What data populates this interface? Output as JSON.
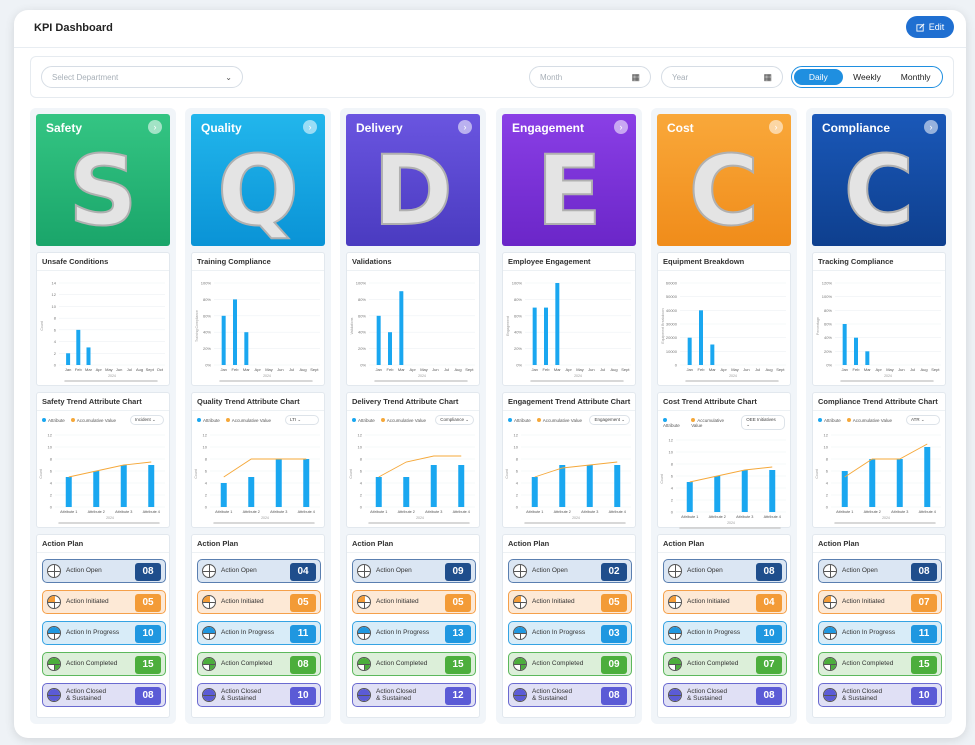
{
  "header": {
    "title": "KPI Dashboard",
    "edit_label": "Edit"
  },
  "filters": {
    "department_placeholder": "Select Department",
    "month_placeholder": "Month",
    "year_placeholder": "Year",
    "toggle": [
      "Daily",
      "Weekly",
      "Monthly"
    ],
    "active_toggle": "Daily"
  },
  "legend": {
    "attribute": "Attribute",
    "accumulative": "Accumulative Value"
  },
  "action_plan_title": "Action Plan",
  "action_labels": [
    "Action Open",
    "Action Initiated",
    "Action In Progress",
    "Action Completed",
    "Action Closed\n& Sustained"
  ],
  "action_colors": {
    "bg": [
      "#dbe6f3",
      "#fde9d6",
      "#d8ecf8",
      "#dcefd9",
      "#e0e0f5"
    ],
    "border": [
      "#5a7fb0",
      "#f5a04a",
      "#35a3e3",
      "#5cb85c",
      "#6a6ad0"
    ],
    "count": [
      "#1f4e8c",
      "#f39b37",
      "#1f97e0",
      "#4cae3c",
      "#5b5bd6"
    ]
  },
  "columns": [
    {
      "name": "Safety",
      "letter": "S",
      "color_top": "#34c583",
      "color_bottom": "#1aa56a",
      "metric_title": "Unsafe Conditions",
      "metric_chart": {
        "type": "bar",
        "ylabel": "Count",
        "categories": [
          "Jan",
          "Feb",
          "Mar",
          "Apr",
          "May",
          "Jun",
          "Jul",
          "Aug",
          "Sept",
          "Oct"
        ],
        "values": [
          2,
          6,
          3,
          0,
          0,
          0,
          0,
          0,
          0,
          0
        ],
        "ylim": [
          0,
          14
        ],
        "ticks": [
          "0",
          "2",
          "4",
          "6",
          "8",
          "10",
          "12",
          "14"
        ],
        "xlabel": "2024"
      },
      "trend_title": "Safety Trend Attribute Chart",
      "trend_select": "Incident",
      "trend_chart": {
        "type": "bar",
        "ylabel": "Count",
        "xlabel": "2024",
        "categories": [
          "Attribute 1",
          "Attribute 2",
          "Attribute 3",
          "Attribute 4"
        ],
        "series": [
          {
            "name": "Attribute",
            "values": [
              5,
              6,
              7,
              7
            ]
          },
          {
            "name": "Accumulative Value",
            "values": [
              5,
              6,
              7,
              7.5
            ]
          }
        ],
        "ylim": [
          0,
          12
        ]
      },
      "actions": [
        "08",
        "05",
        "10",
        "15",
        "08"
      ]
    },
    {
      "name": "Quality",
      "letter": "Q",
      "color_top": "#22b6ec",
      "color_bottom": "#0a93d6",
      "metric_title": "Training Compliance",
      "metric_chart": {
        "type": "bar",
        "ylabel": "Training Compliance",
        "categories": [
          "Jan",
          "Feb",
          "Mar",
          "Apr",
          "May",
          "Jun",
          "Jul",
          "Aug",
          "Sept"
        ],
        "values": [
          60,
          80,
          40,
          0,
          0,
          0,
          0,
          0,
          0
        ],
        "ylim": [
          0,
          100
        ],
        "ticks": [
          "0%",
          "20%",
          "40%",
          "60%",
          "80%",
          "100%"
        ],
        "xlabel": "2024"
      },
      "trend_title": "Quality Trend Attribute Chart",
      "trend_select": "LTI",
      "trend_chart": {
        "type": "bar",
        "ylabel": "Count",
        "xlabel": "2024",
        "categories": [
          "Attribute 1",
          "Attribute 2",
          "Attribute 3",
          "Attribute 4"
        ],
        "series": [
          {
            "name": "Attribute",
            "values": [
              4,
              5,
              8,
              8
            ]
          },
          {
            "name": "Accumulative Value",
            "values": [
              5,
              8,
              8,
              8
            ]
          }
        ],
        "ylim": [
          0,
          12
        ]
      },
      "actions": [
        "04",
        "05",
        "11",
        "08",
        "10"
      ]
    },
    {
      "name": "Delivery",
      "letter": "D",
      "color_top": "#6a55e0",
      "color_bottom": "#4a3bc0",
      "metric_title": "Validations",
      "metric_chart": {
        "type": "bar",
        "ylabel": "Validations",
        "categories": [
          "Jan",
          "Feb",
          "Mar",
          "Apr",
          "May",
          "Jun",
          "Jul",
          "Aug",
          "Sept"
        ],
        "values": [
          60,
          40,
          90,
          0,
          0,
          0,
          0,
          0,
          0
        ],
        "ylim": [
          0,
          100
        ],
        "ticks": [
          "0%",
          "20%",
          "40%",
          "60%",
          "80%",
          "100%"
        ],
        "xlabel": "2024"
      },
      "trend_title": "Delivery Trend Attribute Chart",
      "trend_select": "Compliance",
      "trend_chart": {
        "type": "bar",
        "ylabel": "Count",
        "xlabel": "2024",
        "categories": [
          "Attribute 1",
          "Attribute 2",
          "Attribute 3",
          "Attribute 4"
        ],
        "series": [
          {
            "name": "Attribute",
            "values": [
              5,
              5,
              7,
              7
            ]
          },
          {
            "name": "Accumulative Value",
            "values": [
              5,
              7.5,
              8.5,
              8.5
            ]
          }
        ],
        "ylim": [
          0,
          12
        ]
      },
      "actions": [
        "09",
        "05",
        "13",
        "15",
        "12"
      ]
    },
    {
      "name": "Engagement",
      "letter": "E",
      "color_top": "#8a3fe6",
      "color_bottom": "#6b26c8",
      "metric_title": "Employee Engagement",
      "metric_chart": {
        "type": "bar",
        "ylabel": "Engagement",
        "categories": [
          "Jan",
          "Feb",
          "Mar",
          "Apr",
          "May",
          "Jun",
          "Jul",
          "Aug",
          "Sept"
        ],
        "values": [
          70,
          70,
          100,
          0,
          0,
          0,
          0,
          0,
          0
        ],
        "ylim": [
          0,
          100
        ],
        "ticks": [
          "0%",
          "20%",
          "40%",
          "60%",
          "80%",
          "100%"
        ],
        "xlabel": "2024"
      },
      "trend_title": "Engagement Trend Attribute Chart",
      "trend_select": "Engagement",
      "trend_chart": {
        "type": "bar",
        "ylabel": "Count",
        "xlabel": "2024",
        "categories": [
          "Attribute 1",
          "Attribute 2",
          "Attribute 3",
          "Attribute 4"
        ],
        "series": [
          {
            "name": "Attribute",
            "values": [
              5,
              7,
              7,
              7
            ]
          },
          {
            "name": "Accumulative Value",
            "values": [
              5,
              6.5,
              7,
              7.5
            ]
          }
        ],
        "ylim": [
          0,
          12
        ]
      },
      "actions": [
        "02",
        "05",
        "03",
        "09",
        "08"
      ]
    },
    {
      "name": "Cost",
      "letter": "C",
      "color_top": "#f9a83a",
      "color_bottom": "#f08c1a",
      "metric_title": "Equipment Breakdown",
      "metric_chart": {
        "type": "bar",
        "ylabel": "Equipment Breakdown",
        "categories": [
          "Jan",
          "Feb",
          "Mar",
          "Apr",
          "May",
          "Jun",
          "Jul",
          "Aug",
          "Sept"
        ],
        "values": [
          20000,
          40000,
          15000,
          0,
          0,
          0,
          0,
          0,
          0
        ],
        "ylim": [
          0,
          60000
        ],
        "ticks": [
          "0",
          "10000",
          "20000",
          "30000",
          "40000",
          "50000",
          "60000"
        ],
        "xlabel": "2024"
      },
      "trend_title": "Cost Trend Attribute Chart",
      "trend_select": "OEE Initiatives",
      "trend_chart": {
        "type": "bar",
        "ylabel": "Count",
        "xlabel": "2024",
        "categories": [
          "Attribute 1",
          "Attribute 2",
          "Attribute 3",
          "Attribute 4"
        ],
        "series": [
          {
            "name": "Attribute",
            "values": [
              5,
              6,
              7,
              7
            ]
          },
          {
            "name": "Accumulative Value",
            "values": [
              5,
              6,
              7,
              7.5
            ]
          }
        ],
        "ylim": [
          0,
          12
        ]
      },
      "actions": [
        "08",
        "04",
        "10",
        "07",
        "08"
      ]
    },
    {
      "name": "Compliance",
      "letter": "C",
      "color_top": "#1a58b8",
      "color_bottom": "#0e3f8e",
      "metric_title": "Tracking Compliance",
      "metric_chart": {
        "type": "bar",
        "ylabel": "Percentage",
        "categories": [
          "Jan",
          "Feb",
          "Mar",
          "Apr",
          "May",
          "Jun",
          "Jul",
          "Aug",
          "Sept"
        ],
        "values": [
          60,
          40,
          20,
          0,
          0,
          0,
          0,
          0,
          0
        ],
        "ylim": [
          0,
          120
        ],
        "ticks": [
          "0%",
          "20%",
          "40%",
          "60%",
          "80%",
          "100%",
          "120%"
        ],
        "xlabel": "2024"
      },
      "trend_title": "Compliance Trend Attribute Chart",
      "trend_select": "ATR",
      "trend_chart": {
        "type": "bar",
        "ylabel": "Count",
        "xlabel": "2024",
        "categories": [
          "Attribute 1",
          "Attribute 2",
          "Attribute 3",
          "Attribute 4"
        ],
        "series": [
          {
            "name": "Attribute",
            "values": [
              6,
              8,
              8,
              10
            ]
          },
          {
            "name": "Accumulative Value",
            "values": [
              5,
              8,
              8,
              10.5
            ]
          }
        ],
        "ylim": [
          0,
          12
        ]
      },
      "actions": [
        "08",
        "07",
        "11",
        "15",
        "10"
      ]
    }
  ],
  "chart_data": [
    {
      "type": "bar",
      "title": "Unsafe Conditions",
      "categories": [
        "Jan",
        "Feb",
        "Mar"
      ],
      "values": [
        2,
        6,
        3
      ]
    },
    {
      "type": "bar",
      "title": "Training Compliance",
      "categories": [
        "Jan",
        "Feb",
        "Mar"
      ],
      "values": [
        60,
        80,
        40
      ]
    },
    {
      "type": "bar",
      "title": "Validations",
      "categories": [
        "Jan",
        "Feb",
        "Mar"
      ],
      "values": [
        60,
        40,
        90
      ]
    },
    {
      "type": "bar",
      "title": "Employee Engagement",
      "categories": [
        "Jan",
        "Feb",
        "Mar"
      ],
      "values": [
        70,
        70,
        100
      ]
    },
    {
      "type": "bar",
      "title": "Equipment Breakdown",
      "categories": [
        "Jan",
        "Feb",
        "Mar"
      ],
      "values": [
        20000,
        40000,
        15000
      ]
    },
    {
      "type": "bar",
      "title": "Tracking Compliance",
      "categories": [
        "Jan",
        "Feb",
        "Mar"
      ],
      "values": [
        60,
        40,
        20
      ]
    }
  ]
}
